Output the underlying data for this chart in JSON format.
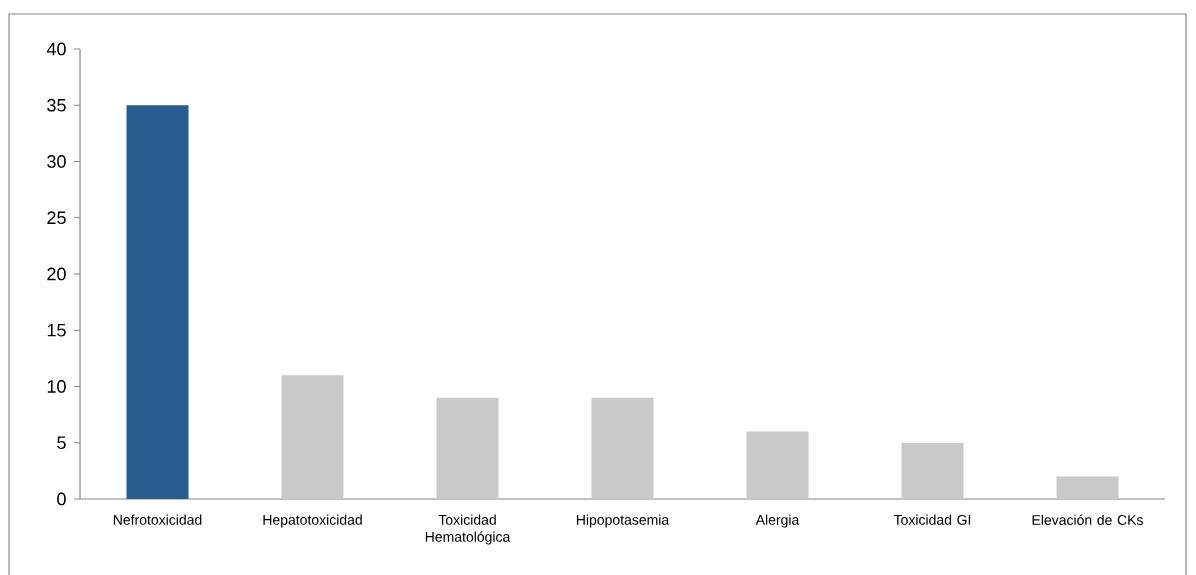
{
  "chart_data": {
    "type": "bar",
    "categories": [
      "Nefrotoxicidad",
      "Hepatotoxicidad",
      "Toxicidad Hematológica",
      "Hipopotasemia",
      "Alergia",
      "Toxicidad GI",
      "Elevación de CKs"
    ],
    "values": [
      35,
      11,
      9,
      9,
      6,
      5,
      2
    ],
    "colors": [
      "#285c8e",
      "#c9c9c9",
      "#c9c9c9",
      "#c9c9c9",
      "#c9c9c9",
      "#c9c9c9",
      "#c9c9c9"
    ],
    "ylim": [
      0,
      40
    ],
    "yticks": [
      0,
      5,
      10,
      15,
      20,
      25,
      30,
      35,
      40
    ],
    "grid": false
  }
}
